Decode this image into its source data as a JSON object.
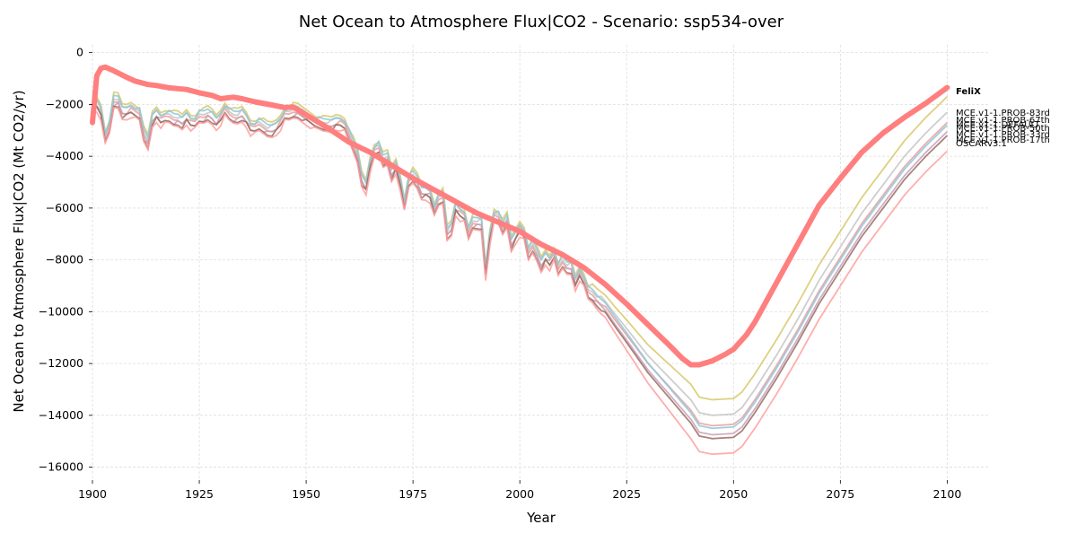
{
  "chart_data": {
    "type": "line",
    "title": "Net Ocean to Atmosphere Flux|CO2 - Scenario: ssp534-over",
    "xlabel": "Year",
    "ylabel": "Net Ocean to Atmosphere Flux|CO2 (Mt CO2/yr)",
    "xlim": [
      1900,
      2110
    ],
    "ylim": [
      -16500,
      300
    ],
    "x_ticks": [
      1900,
      1925,
      1950,
      1975,
      2000,
      2025,
      2050,
      2075,
      2100
    ],
    "y_ticks": [
      0,
      -2000,
      -4000,
      -6000,
      -8000,
      -10000,
      -12000,
      -14000,
      -16000
    ],
    "grid": true,
    "legend": "labels at line ends (right)",
    "felix": {
      "name": "FeliX",
      "color": "#ff7f7f",
      "points": [
        [
          1900,
          -2700
        ],
        [
          1901,
          -900
        ],
        [
          1902,
          -600
        ],
        [
          1903,
          -560
        ],
        [
          1905,
          -700
        ],
        [
          1908,
          -950
        ],
        [
          1910,
          -1100
        ],
        [
          1913,
          -1230
        ],
        [
          1915,
          -1270
        ],
        [
          1918,
          -1360
        ],
        [
          1922,
          -1420
        ],
        [
          1925,
          -1550
        ],
        [
          1928,
          -1650
        ],
        [
          1930,
          -1780
        ],
        [
          1933,
          -1720
        ],
        [
          1935,
          -1780
        ],
        [
          1938,
          -1900
        ],
        [
          1942,
          -2020
        ],
        [
          1945,
          -2120
        ],
        [
          1947,
          -2100
        ],
        [
          1950,
          -2400
        ],
        [
          1955,
          -2900
        ],
        [
          1960,
          -3450
        ],
        [
          1965,
          -3850
        ],
        [
          1970,
          -4350
        ],
        [
          1975,
          -4850
        ],
        [
          1980,
          -5300
        ],
        [
          1985,
          -5750
        ],
        [
          1990,
          -6200
        ],
        [
          1995,
          -6550
        ],
        [
          2000,
          -6900
        ],
        [
          2005,
          -7400
        ],
        [
          2010,
          -7800
        ],
        [
          2015,
          -8300
        ],
        [
          2020,
          -8950
        ],
        [
          2025,
          -9700
        ],
        [
          2030,
          -10500
        ],
        [
          2035,
          -11300
        ],
        [
          2038,
          -11800
        ],
        [
          2040,
          -12050
        ],
        [
          2042,
          -12050
        ],
        [
          2045,
          -11900
        ],
        [
          2048,
          -11650
        ],
        [
          2050,
          -11450
        ],
        [
          2053,
          -10900
        ],
        [
          2055,
          -10400
        ],
        [
          2060,
          -8900
        ],
        [
          2065,
          -7400
        ],
        [
          2070,
          -5900
        ],
        [
          2075,
          -4850
        ],
        [
          2080,
          -3850
        ],
        [
          2085,
          -3100
        ],
        [
          2090,
          -2500
        ],
        [
          2095,
          -1950
        ],
        [
          2100,
          -1350
        ]
      ]
    },
    "series": [
      {
        "name": "MCE.v1-1.PROB-83rd",
        "color": "#d8c86a",
        "hist_offset": 300,
        "future_offset": 1500
      },
      {
        "name": "MCE.v1-1.PROB-67th",
        "color": "#c6c6c6",
        "hist_offset": 150,
        "future_offset": 900
      },
      {
        "name": "MCE.v1-1.PROB-50th",
        "color": "#e8a0a0",
        "hist_offset": 0,
        "future_offset": 500
      },
      {
        "name": "MCE.v1-1.DEFAULT",
        "color": "#8fc8d8",
        "hist_offset": 200,
        "future_offset": 400
      },
      {
        "name": "MCE.v1-1.PROB-33rd",
        "color": "#c8a0b8",
        "hist_offset": -100,
        "future_offset": 150
      },
      {
        "name": "MCE.v1-1.PROB-17th",
        "color": "#996f62",
        "hist_offset": -150,
        "future_offset": 0
      },
      {
        "name": "OSCARv3.1",
        "color": "#ff9f9f",
        "hist_offset": -250,
        "future_offset": -600
      }
    ],
    "base_points": [
      [
        1900,
        -2000
      ],
      [
        1901,
        -2000
      ],
      [
        1902,
        -2300
      ],
      [
        1903,
        -3300
      ],
      [
        1904,
        -2900
      ],
      [
        1905,
        -1900
      ],
      [
        1906,
        -1900
      ],
      [
        1907,
        -2300
      ],
      [
        1908,
        -2300
      ],
      [
        1909,
        -2200
      ],
      [
        1910,
        -2300
      ],
      [
        1911,
        -2400
      ],
      [
        1912,
        -3200
      ],
      [
        1913,
        -3500
      ],
      [
        1914,
        -2600
      ],
      [
        1915,
        -2400
      ],
      [
        1916,
        -2600
      ],
      [
        1917,
        -2500
      ],
      [
        1918,
        -2500
      ],
      [
        1919,
        -2600
      ],
      [
        1920,
        -2600
      ],
      [
        1921,
        -2700
      ],
      [
        1922,
        -2500
      ],
      [
        1923,
        -2700
      ],
      [
        1924,
        -2700
      ],
      [
        1925,
        -2500
      ],
      [
        1926,
        -2500
      ],
      [
        1927,
        -2400
      ],
      [
        1928,
        -2500
      ],
      [
        1929,
        -2700
      ],
      [
        1930,
        -2500
      ],
      [
        1931,
        -2200
      ],
      [
        1932,
        -2400
      ],
      [
        1933,
        -2500
      ],
      [
        1934,
        -2500
      ],
      [
        1935,
        -2400
      ],
      [
        1936,
        -2600
      ],
      [
        1937,
        -2900
      ],
      [
        1938,
        -2900
      ],
      [
        1939,
        -2800
      ],
      [
        1940,
        -2900
      ],
      [
        1941,
        -3000
      ],
      [
        1942,
        -3000
      ],
      [
        1943,
        -2900
      ],
      [
        1944,
        -2700
      ],
      [
        1945,
        -2400
      ],
      [
        1946,
        -2400
      ],
      [
        1947,
        -2300
      ],
      [
        1948,
        -2300
      ],
      [
        1949,
        -2400
      ],
      [
        1950,
        -2500
      ],
      [
        1951,
        -2600
      ],
      [
        1952,
        -2700
      ],
      [
        1953,
        -2750
      ],
      [
        1954,
        -2800
      ],
      [
        1955,
        -2800
      ],
      [
        1956,
        -2800
      ],
      [
        1957,
        -2700
      ],
      [
        1958,
        -2700
      ],
      [
        1959,
        -2800
      ],
      [
        1960,
        -3200
      ],
      [
        1961,
        -3600
      ],
      [
        1962,
        -4000
      ],
      [
        1963,
        -4900
      ],
      [
        1964,
        -5200
      ],
      [
        1965,
        -4300
      ],
      [
        1966,
        -3800
      ],
      [
        1967,
        -3700
      ],
      [
        1968,
        -4200
      ],
      [
        1969,
        -4100
      ],
      [
        1970,
        -4700
      ],
      [
        1971,
        -4400
      ],
      [
        1972,
        -5000
      ],
      [
        1973,
        -5900
      ],
      [
        1974,
        -5000
      ],
      [
        1975,
        -4800
      ],
      [
        1976,
        -5000
      ],
      [
        1977,
        -5400
      ],
      [
        1978,
        -5400
      ],
      [
        1979,
        -5500
      ],
      [
        1980,
        -6100
      ],
      [
        1981,
        -5700
      ],
      [
        1982,
        -5600
      ],
      [
        1983,
        -7000
      ],
      [
        1984,
        -6800
      ],
      [
        1985,
        -6000
      ],
      [
        1986,
        -6200
      ],
      [
        1987,
        -6300
      ],
      [
        1988,
        -7000
      ],
      [
        1989,
        -6600
      ],
      [
        1990,
        -6600
      ],
      [
        1991,
        -6600
      ],
      [
        1992,
        -8500
      ],
      [
        1993,
        -7100
      ],
      [
        1994,
        -6300
      ],
      [
        1995,
        -6400
      ],
      [
        1996,
        -6800
      ],
      [
        1997,
        -6500
      ],
      [
        1998,
        -7400
      ],
      [
        1999,
        -7100
      ],
      [
        2000,
        -6800
      ],
      [
        2001,
        -7000
      ],
      [
        2002,
        -7800
      ],
      [
        2003,
        -7500
      ],
      [
        2004,
        -7800
      ],
      [
        2005,
        -8200
      ],
      [
        2006,
        -7900
      ],
      [
        2007,
        -8100
      ],
      [
        2008,
        -7800
      ],
      [
        2009,
        -8400
      ],
      [
        2010,
        -8100
      ],
      [
        2011,
        -8300
      ],
      [
        2012,
        -8300
      ],
      [
        2013,
        -8900
      ],
      [
        2014,
        -8500
      ],
      [
        2015,
        -8800
      ],
      [
        2016,
        -9300
      ],
      [
        2017,
        -9400
      ],
      [
        2018,
        -9600
      ],
      [
        2020,
        -9900
      ],
      [
        2022,
        -10400
      ],
      [
        2025,
        -11100
      ],
      [
        2030,
        -12300
      ],
      [
        2035,
        -13300
      ],
      [
        2040,
        -14300
      ],
      [
        2042,
        -14800
      ],
      [
        2045,
        -14900
      ],
      [
        2050,
        -14850
      ],
      [
        2052,
        -14600
      ],
      [
        2055,
        -13900
      ],
      [
        2060,
        -12600
      ],
      [
        2065,
        -11200
      ],
      [
        2070,
        -9700
      ],
      [
        2075,
        -8400
      ],
      [
        2080,
        -7100
      ],
      [
        2085,
        -6000
      ],
      [
        2090,
        -4900
      ],
      [
        2095,
        -4000
      ],
      [
        2100,
        -3200
      ]
    ]
  },
  "end_labels": {
    "felix": "FeliX",
    "l1": "MCE.v1-1.PROB-83rd",
    "l2": "MCE.v1-1.PROB-67th",
    "l3": "MCE.v1-1.DEFAULT",
    "l4": "MCE.v1-1.PROB-50th",
    "l5": "MCE.v1-1.PROB-33rd",
    "l6": "MCE.v1-1.PROB-17th",
    "l7": "OSCARv3.1"
  }
}
